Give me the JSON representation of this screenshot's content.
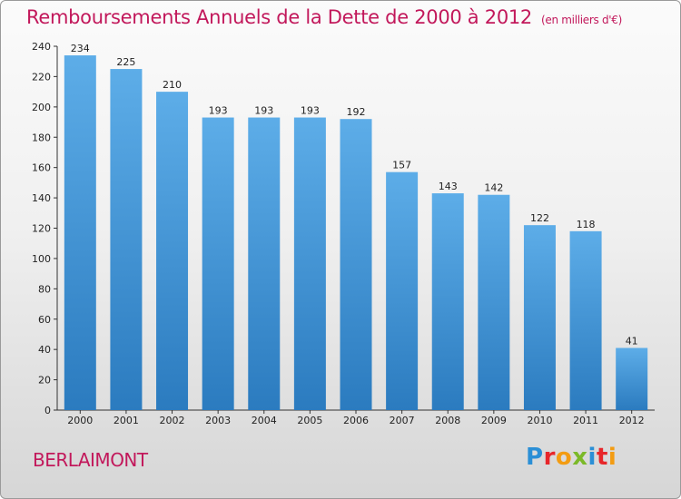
{
  "header": {
    "title": "Remboursements Annuels de la Dette de 2000 à 2012",
    "subtitle": "(en milliers d'€)"
  },
  "footer": {
    "city": "BERLAIMONT",
    "brand": [
      "P",
      "r",
      "o",
      "x",
      "i",
      "t",
      "i"
    ],
    "brand_colors": [
      "#2b8fd6",
      "#e7262a",
      "#f39c12",
      "#7bb928",
      "#2b8fd6",
      "#e7262a",
      "#f39c12"
    ]
  },
  "chart_data": {
    "type": "bar",
    "title": "Remboursements Annuels de la Dette de 2000 à 2012",
    "subtitle": "(en milliers d'€)",
    "categories": [
      "2000",
      "2001",
      "2002",
      "2003",
      "2004",
      "2005",
      "2006",
      "2007",
      "2008",
      "2009",
      "2010",
      "2011",
      "2012"
    ],
    "values": [
      234,
      225,
      210,
      193,
      193,
      193,
      192,
      157,
      143,
      142,
      122,
      118,
      41
    ],
    "xlabel": "",
    "ylabel": "",
    "ylim": [
      0,
      240
    ],
    "yticks": [
      0,
      20,
      40,
      60,
      80,
      100,
      120,
      140,
      160,
      180,
      200,
      220,
      240
    ],
    "grid": false,
    "legend": "none",
    "bar_color_top": "#5dade8",
    "bar_color_bottom": "#2b7bbf",
    "title_color": "#c2185b"
  }
}
